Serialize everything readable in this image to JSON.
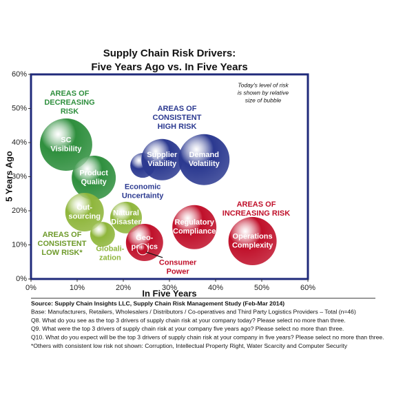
{
  "chart_data": {
    "type": "bubble",
    "title": [
      "Supply Chain Risk Drivers:",
      "Five Years Ago vs. In Five Years"
    ],
    "x_label": "In Five Years",
    "y_label": "5 Years Ago",
    "note": [
      "Today's level of risk",
      "is shown by relative",
      "size of bubble"
    ],
    "xlim": [
      0,
      60
    ],
    "ylim": [
      0,
      60
    ],
    "xticks": [
      {
        "value": 0,
        "label": "0%"
      },
      {
        "value": 10,
        "label": "10%"
      },
      {
        "value": 20,
        "label": "20%"
      },
      {
        "value": 30,
        "label": "30%"
      },
      {
        "value": 40,
        "label": "40%"
      },
      {
        "value": 50,
        "label": "50%"
      },
      {
        "value": 60,
        "label": "60%"
      }
    ],
    "yticks": [
      {
        "value": 0,
        "label": "0%"
      },
      {
        "value": 10,
        "label": "10%"
      },
      {
        "value": 20,
        "label": "20%"
      },
      {
        "value": 30,
        "label": "30%"
      },
      {
        "value": 40,
        "label": "40%"
      },
      {
        "value": 50,
        "label": "50%"
      },
      {
        "value": 60,
        "label": "60%"
      }
    ],
    "points": [
      {
        "label": [
          "SC",
          "Visibility"
        ],
        "x": 7.6,
        "y": 39.4,
        "size": 38,
        "color": "#2f8f3e"
      },
      {
        "label": [
          "Product",
          "Quality"
        ],
        "x": 13.6,
        "y": 29.7,
        "size": 32,
        "color": "#2f8f3e"
      },
      {
        "label": [
          "Economic",
          "Uncertainty"
        ],
        "x": 24.2,
        "y": 33.3,
        "size": 18,
        "color": "#2b3990"
      },
      {
        "label": [
          "Supplier",
          "Viability"
        ],
        "x": 28.4,
        "y": 35.0,
        "size": 30,
        "color": "#2b3990"
      },
      {
        "label": [
          "Demand",
          "Volatility"
        ],
        "x": 37.5,
        "y": 35.0,
        "size": 37,
        "color": "#2b3990"
      },
      {
        "label": [
          "Out-",
          "sourcing"
        ],
        "x": 11.6,
        "y": 19.6,
        "size": 28,
        "color": "#8fb63c"
      },
      {
        "label": [
          "Natural",
          "Disaster"
        ],
        "x": 20.6,
        "y": 18.0,
        "size": 23,
        "color": "#8fb63c"
      },
      {
        "label": [
          "Globali-",
          "zation"
        ],
        "x": 15.5,
        "y": 13.1,
        "size": 18,
        "color": "#8fb63c"
      },
      {
        "label": [
          "Geo-",
          "politics"
        ],
        "x": 24.6,
        "y": 10.7,
        "size": 27,
        "color": "#c0102a"
      },
      {
        "label": [
          "Consumer",
          "Power"
        ],
        "x": 24.2,
        "y": 8.7,
        "size": 8,
        "color": "#c0102a"
      },
      {
        "label": [
          "Regulatory",
          "Compliance"
        ],
        "x": 35.4,
        "y": 15.2,
        "size": 32,
        "color": "#c0102a"
      },
      {
        "label": [
          "Operations",
          "Complexity"
        ],
        "x": 48.0,
        "y": 11.1,
        "size": 35,
        "color": "#c0102a"
      }
    ],
    "annotations": [
      {
        "text": [
          "AREAS OF",
          "DECREASING",
          "RISK"
        ],
        "color": "#2f8f3e"
      },
      {
        "text": [
          "AREAS OF",
          "CONSISTENT",
          "HIGH RISK"
        ],
        "color": "#2b3990"
      },
      {
        "text": [
          "AREAS OF",
          "INCREASING RISK"
        ],
        "color": "#c0102a"
      },
      {
        "text": [
          "AREAS OF",
          "CONSISTENT",
          "LOW RISK*"
        ],
        "color": "#6e9a2a"
      }
    ],
    "footer": [
      "Source:  Supply Chain Insights LLC, Supply Chain Risk Management Study (Feb-Mar 2014)",
      "Base:  Manufacturers,  Retailers, Wholesalers / Distributors / Co-operatives and Third Party Logistics Providers – Total (n=46)",
      "Q8. What do you see as the top 3 drivers of supply chain risk at your company today?  Please select no more than three.",
      "Q9. What were the top 3 drivers of supply chain risk at your company five years ago?  Please select no more than three.",
      "Q10. What do you expect will be the top 3 drivers of supply chain risk at your company in five years?  Please select no more than three.",
      "*Others with consistent low risk not shown:  Corruption, Intellectual Property Right, Water Scarcity and Computer Security"
    ]
  }
}
